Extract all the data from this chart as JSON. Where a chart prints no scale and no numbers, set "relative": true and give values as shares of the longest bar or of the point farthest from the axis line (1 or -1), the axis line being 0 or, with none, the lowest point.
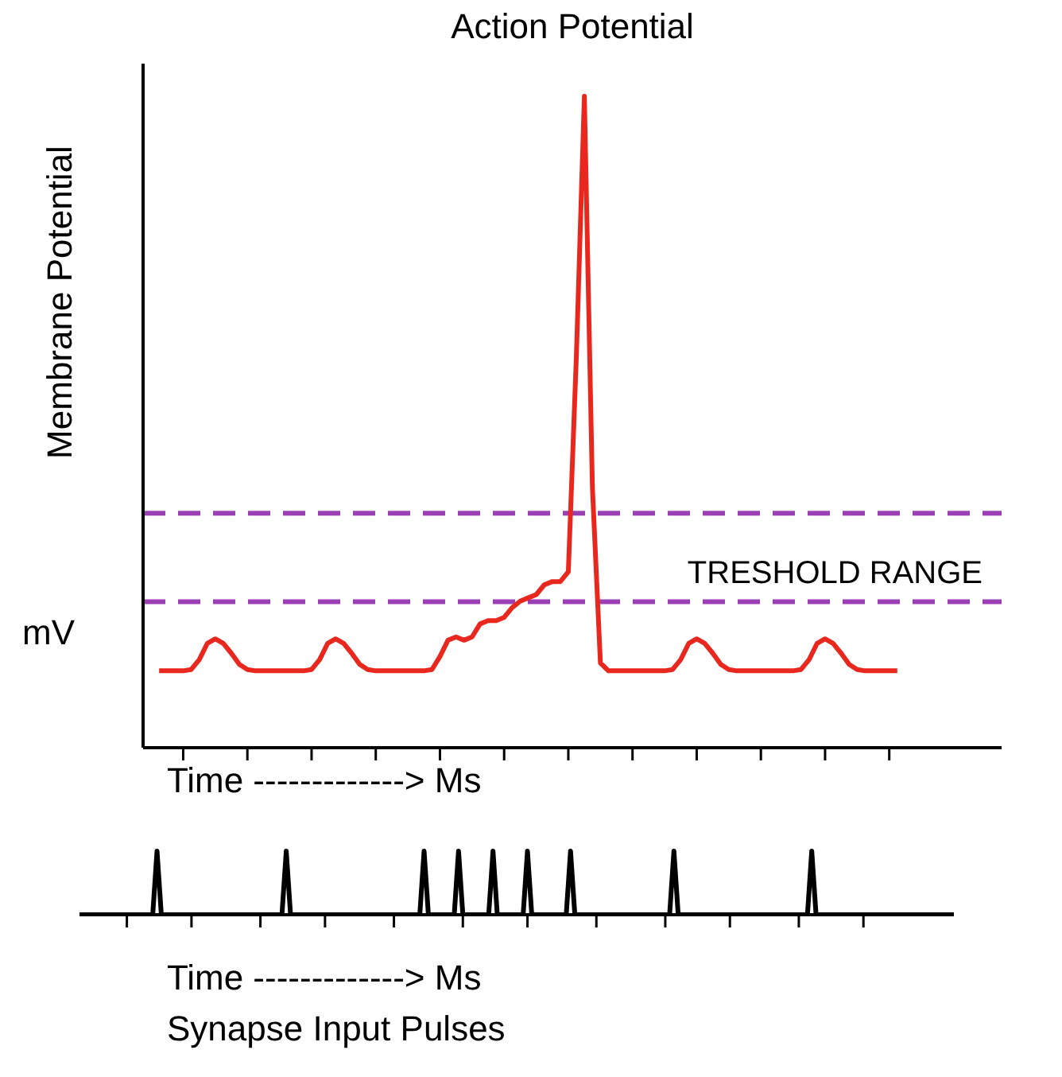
{
  "chart_data": [
    {
      "type": "line",
      "title": "Action Potential",
      "ylabel": "Membrane Potential",
      "xlabel": "Time -------------> Ms",
      "annotations": [
        "mV"
      ],
      "relative": true,
      "categories": [
        null,
        null,
        null,
        null,
        null,
        null,
        null,
        null,
        null,
        null,
        null,
        null,
        null,
        null,
        null,
        null,
        null,
        null,
        null,
        null,
        null,
        null,
        null,
        null,
        null,
        null,
        null,
        null,
        null,
        null,
        null,
        null,
        null,
        null,
        null,
        null,
        null,
        null,
        null,
        null,
        null,
        null,
        null,
        null,
        null,
        null,
        null,
        null,
        null,
        null,
        null,
        null,
        null,
        null,
        null,
        null,
        null,
        null,
        null,
        null,
        null,
        null,
        null,
        null,
        null,
        null,
        null,
        null,
        null,
        null,
        null,
        null,
        null,
        null,
        null,
        null,
        null,
        null,
        null,
        null,
        null,
        null,
        null,
        null,
        null,
        null,
        null,
        null,
        null,
        null,
        null,
        null,
        null,
        null,
        null,
        null,
        null,
        null,
        null,
        null,
        null,
        null,
        null,
        null,
        null,
        null,
        null,
        null
      ],
      "series": [
        {
          "color": "#e8281e",
          "values": [
            null,
            null,
            0.118,
            0.118,
            0.118,
            0.118,
            0.12,
            0.135,
            0.16,
            0.167,
            0.16,
            0.145,
            0.128,
            0.12,
            0.118,
            0.118,
            0.118,
            0.118,
            0.118,
            0.118,
            0.118,
            0.12,
            0.135,
            0.16,
            0.167,
            0.16,
            0.145,
            0.128,
            0.12,
            0.118,
            0.118,
            0.118,
            0.118,
            0.118,
            0.118,
            0.118,
            0.12,
            0.14,
            0.165,
            0.17,
            0.165,
            0.17,
            0.19,
            0.195,
            0.195,
            0.2,
            0.215,
            0.225,
            0.23,
            0.235,
            0.25,
            0.255,
            0.255,
            0.27,
            0.6,
            1.0,
            0.4,
            0.13,
            0.118,
            0.118,
            0.118,
            0.118,
            0.118,
            0.118,
            0.118,
            0.118,
            0.12,
            0.135,
            0.16,
            0.167,
            0.16,
            0.145,
            0.128,
            0.12,
            0.118,
            0.118,
            0.118,
            0.118,
            0.118,
            0.118,
            0.118,
            0.118,
            0.12,
            0.135,
            0.16,
            0.167,
            0.16,
            0.145,
            0.128,
            0.12,
            0.118,
            0.118,
            0.118,
            0.118,
            0.118,
            null,
            null,
            null,
            null,
            null,
            null,
            null,
            null,
            null,
            null,
            null,
            null,
            null
          ]
        }
      ],
      "ref_lines": [
        {
          "axis": "y",
          "value": 0.36,
          "color": "#9b3fb5",
          "line_style": "dashed"
        },
        {
          "axis": "y",
          "value": 0.224,
          "color": "#9b3fb5",
          "line_style": "dashed",
          "label": "TRESHOLD RANGE"
        }
      ]
    },
    {
      "type": "line",
      "xlabel": "Time -------------> Ms",
      "annotations": [
        "Synapse Input Pulses"
      ],
      "relative": true,
      "categories": [
        null,
        null,
        null,
        null,
        null,
        null,
        null,
        null,
        null,
        null,
        null,
        null,
        null,
        null,
        null,
        null,
        null,
        null,
        null,
        null,
        null,
        null,
        null,
        null,
        null,
        null,
        null,
        null,
        null,
        null,
        null,
        null,
        null,
        null,
        null,
        null,
        null,
        null,
        null,
        null,
        null,
        null,
        null,
        null,
        null,
        null,
        null,
        null,
        null,
        null,
        null,
        null,
        null,
        null,
        null,
        null,
        null,
        null,
        null,
        null,
        null,
        null,
        null,
        null,
        null,
        null,
        null,
        null,
        null,
        null,
        null,
        null,
        null,
        null,
        null,
        null,
        null,
        null,
        null,
        null,
        null,
        null,
        null,
        null,
        null,
        null,
        null,
        null,
        null,
        null,
        null,
        null,
        null,
        null,
        null,
        null,
        null,
        null,
        null,
        null,
        null,
        null,
        null,
        null,
        null,
        null,
        null,
        null,
        null,
        null,
        null,
        null,
        null,
        null,
        null,
        null,
        null,
        null,
        null,
        null,
        null,
        null,
        null,
        null,
        null,
        null,
        null,
        null,
        null,
        null,
        null,
        null,
        null,
        null,
        null,
        null,
        null,
        null,
        null,
        null,
        null,
        null,
        null,
        null,
        null,
        null,
        null,
        null,
        null,
        null,
        null,
        null,
        null,
        null,
        null,
        null,
        null,
        null,
        null,
        null,
        null,
        null,
        null,
        null,
        null,
        null,
        null,
        null,
        null,
        null,
        null,
        null,
        null,
        null,
        null,
        null,
        null,
        null,
        null,
        null,
        null,
        null,
        null,
        null,
        null,
        null,
        null,
        null,
        null,
        null,
        null,
        null,
        null,
        null,
        null,
        null,
        null,
        null,
        null,
        null,
        null,
        null,
        null,
        null
      ],
      "series": [
        {
          "color": "#000000",
          "values": [
            0,
            0,
            0,
            0,
            0,
            0,
            0,
            0,
            0,
            0,
            0,
            0,
            0,
            0,
            0,
            0,
            0,
            0,
            1,
            0,
            0,
            0,
            0,
            0,
            0,
            0,
            0,
            0,
            0,
            0,
            0,
            0,
            0,
            0,
            0,
            0,
            0,
            0,
            0,
            0,
            0,
            0,
            0,
            0,
            0,
            0,
            0,
            0,
            1,
            0,
            0,
            0,
            0,
            0,
            0,
            0,
            0,
            0,
            0,
            0,
            0,
            0,
            0,
            0,
            0,
            0,
            0,
            0,
            0,
            0,
            0,
            0,
            0,
            0,
            0,
            0,
            0,
            0,
            0,
            0,
            1,
            0,
            0,
            0,
            0,
            0,
            0,
            0,
            1,
            0,
            0,
            0,
            0,
            0,
            0,
            0,
            1,
            0,
            0,
            0,
            0,
            0,
            0,
            0,
            1,
            0,
            0,
            0,
            0,
            0,
            0,
            0,
            0,
            0,
            1,
            0,
            0,
            0,
            0,
            0,
            0,
            0,
            0,
            0,
            0,
            0,
            0,
            0,
            0,
            0,
            0,
            0,
            0,
            0,
            0,
            0,
            0,
            0,
            1,
            0,
            0,
            0,
            0,
            0,
            0,
            0,
            0,
            0,
            0,
            0,
            0,
            0,
            0,
            0,
            0,
            0,
            0,
            0,
            0,
            0,
            0,
            0,
            0,
            0,
            0,
            0,
            0,
            0,
            0,
            0,
            1,
            0,
            0,
            0,
            0,
            0,
            0,
            0,
            0,
            0,
            0,
            0,
            0,
            0,
            0,
            0,
            0,
            0,
            0,
            0,
            0,
            0,
            0,
            0,
            0,
            0,
            0,
            0,
            0,
            0,
            0,
            0,
            0,
            0
          ]
        }
      ]
    }
  ]
}
